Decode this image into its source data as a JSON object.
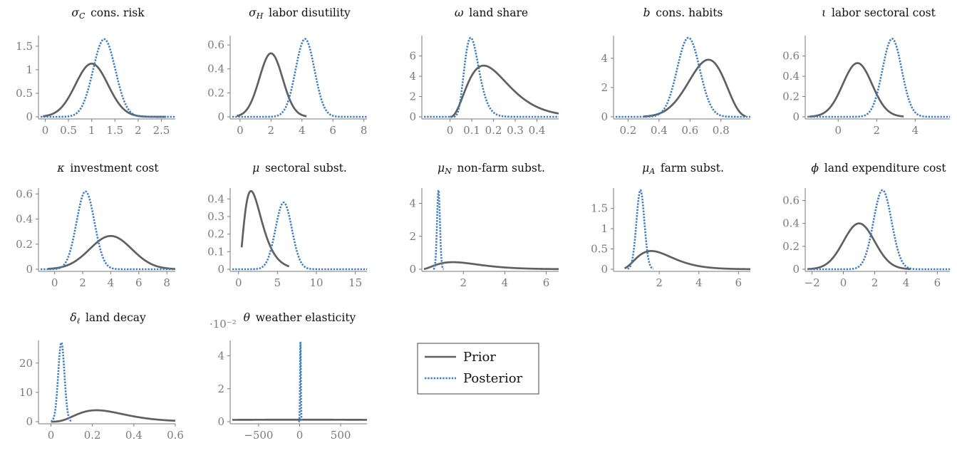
{
  "colors": {
    "prior": "#606060",
    "posterior": "#3f7fbf",
    "axis": "#7a7a7a"
  },
  "legend": {
    "prior_label": "Prior",
    "posterior_label": "Posterior",
    "placement": "right of bottom row"
  },
  "chart_data": [
    {
      "type": "line",
      "title": "σ_C cons. risk",
      "xlim": [
        -0.1,
        2.8
      ],
      "ylim": [
        0,
        1.68
      ],
      "xticks": [
        0,
        0.5,
        1,
        1.5,
        2,
        2.5
      ],
      "xtick_labels": [
        "0",
        "0.5",
        "1",
        "1.5",
        "2",
        "2.5"
      ],
      "yticks": [
        0,
        0.5,
        1,
        1.5
      ],
      "ytick_labels": [
        "0",
        "0.5",
        "1",
        "1.5"
      ],
      "series": [
        {
          "name": "Prior",
          "dist": "normal",
          "mean": 1.0,
          "sd": 0.35,
          "peak": 1.13,
          "support": [
            -0.05,
            2.6
          ]
        },
        {
          "name": "Posterior",
          "dist": "normal",
          "mean": 1.27,
          "sd": 0.24,
          "peak": 1.65,
          "support": [
            -0.1,
            2.8
          ]
        }
      ]
    },
    {
      "type": "line",
      "title": "σ_H labor disutility",
      "xlim": [
        -0.5,
        8.2
      ],
      "ylim": [
        0,
        0.66
      ],
      "xticks": [
        0,
        2,
        4,
        6,
        8
      ],
      "xtick_labels": [
        "0",
        "2",
        "4",
        "6",
        "8"
      ],
      "yticks": [
        0,
        0.2,
        0.4,
        0.6
      ],
      "ytick_labels": [
        "0",
        "0.2",
        "0.4",
        "0.6"
      ],
      "series": [
        {
          "name": "Prior",
          "dist": "normal",
          "mean": 2.0,
          "sd": 0.75,
          "peak": 0.53,
          "support": [
            -0.2,
            4.3
          ]
        },
        {
          "name": "Posterior",
          "dist": "normal",
          "mean": 4.2,
          "sd": 0.61,
          "peak": 0.65,
          "support": [
            -0.5,
            8.2
          ]
        }
      ]
    },
    {
      "type": "line",
      "title": "ω land share",
      "xlim": [
        -0.12,
        0.5
      ],
      "ylim": [
        0,
        7.8
      ],
      "xticks": [
        0,
        0.1,
        0.2,
        0.3,
        0.4
      ],
      "xtick_labels": [
        "0",
        "0.1",
        "0.2",
        "0.3",
        "0.4"
      ],
      "yticks": [
        0,
        2,
        4,
        6
      ],
      "ytick_labels": [
        "0",
        "2",
        "4",
        "6"
      ],
      "series": [
        {
          "name": "Prior",
          "dist": "gamma",
          "mode": 0.155,
          "shape": 3.6,
          "peak": 5.05,
          "support": [
            0.0,
            0.5
          ]
        },
        {
          "name": "Posterior",
          "dist": "gamma",
          "mode": 0.095,
          "shape": 9.0,
          "peak": 7.8,
          "support": [
            -0.12,
            0.5
          ]
        }
      ]
    },
    {
      "type": "line",
      "title": "b cons. habits",
      "xlim": [
        0.12,
        0.99
      ],
      "ylim": [
        0,
        5.4
      ],
      "xticks": [
        0.2,
        0.4,
        0.6,
        0.8
      ],
      "xtick_labels": [
        "0.2",
        "0.4",
        "0.6",
        "0.8"
      ],
      "yticks": [
        0,
        2,
        4
      ],
      "ytick_labels": [
        "0",
        "2",
        "4"
      ],
      "series": [
        {
          "name": "Prior",
          "dist": "beta",
          "mode": 0.72,
          "a": 11,
          "b": 4.9,
          "peak": 3.9,
          "support": [
            0.3,
            0.96
          ]
        },
        {
          "name": "Posterior",
          "dist": "normal",
          "mean": 0.59,
          "sd": 0.073,
          "peak": 5.4,
          "support": [
            0.12,
            0.99
          ]
        }
      ]
    },
    {
      "type": "line",
      "title": "ι labor sectoral cost",
      "xlim": [
        -1.6,
        5.8
      ],
      "ylim": [
        0,
        0.78
      ],
      "xticks": [
        0,
        2,
        4
      ],
      "xtick_labels": [
        "0",
        "2",
        "4"
      ],
      "yticks": [
        0,
        0.2,
        0.4,
        0.6
      ],
      "ytick_labels": [
        "0",
        "0.2",
        "0.4",
        "0.6"
      ],
      "series": [
        {
          "name": "Prior",
          "dist": "normal",
          "mean": 1.0,
          "sd": 0.76,
          "peak": 0.53,
          "support": [
            -1.5,
            3.4
          ]
        },
        {
          "name": "Posterior",
          "dist": "normal",
          "mean": 2.8,
          "sd": 0.5,
          "peak": 0.77,
          "support": [
            -1.6,
            5.8
          ]
        }
      ]
    },
    {
      "type": "line",
      "title": "κ investment cost",
      "xlim": [
        -1.0,
        8.6
      ],
      "ylim": [
        0,
        0.63
      ],
      "xticks": [
        0,
        2,
        4,
        6,
        8
      ],
      "xtick_labels": [
        "0",
        "2",
        "4",
        "6",
        "8"
      ],
      "yticks": [
        0,
        0.2,
        0.4,
        0.6
      ],
      "ytick_labels": [
        "0",
        "0.2",
        "0.4",
        "0.6"
      ],
      "series": [
        {
          "name": "Prior",
          "dist": "normal",
          "mean": 4.0,
          "sd": 1.5,
          "peak": 0.265,
          "support": [
            -0.5,
            8.6
          ]
        },
        {
          "name": "Posterior",
          "dist": "normal",
          "mean": 2.2,
          "sd": 0.64,
          "peak": 0.62,
          "support": [
            -1.0,
            8.6
          ]
        }
      ]
    },
    {
      "type": "line",
      "title": "μ sectoral subst.",
      "xlim": [
        -0.8,
        16.5
      ],
      "ylim": [
        0,
        0.45
      ],
      "xticks": [
        0,
        5,
        10,
        15
      ],
      "xtick_labels": [
        "0",
        "5",
        "10",
        "15"
      ],
      "yticks": [
        0,
        0.1,
        0.2,
        0.3,
        0.4
      ],
      "ytick_labels": [
        "0",
        "0.1",
        "0.2",
        "0.3",
        "0.4"
      ],
      "series": [
        {
          "name": "Prior",
          "dist": "gamma",
          "mode": 1.6,
          "shape": 3.0,
          "peak": 0.445,
          "support": [
            0.4,
            6.5
          ]
        },
        {
          "name": "Posterior",
          "dist": "normal",
          "mean": 5.8,
          "sd": 1.05,
          "peak": 0.38,
          "support": [
            -0.8,
            16.5
          ]
        }
      ]
    },
    {
      "type": "line",
      "title": "μ_N non-farm subst.",
      "xlim": [
        0.1,
        6.6
      ],
      "ylim": [
        0,
        4.8
      ],
      "xticks": [
        2,
        4,
        6
      ],
      "xtick_labels": [
        "2",
        "4",
        "6"
      ],
      "yticks": [
        0,
        2,
        4
      ],
      "ytick_labels": [
        "0",
        "2",
        "4"
      ],
      "series": [
        {
          "name": "Prior",
          "dist": "gamma",
          "mode": 1.5,
          "shape": 3.0,
          "peak": 0.43,
          "support": [
            0.1,
            6.6
          ]
        },
        {
          "name": "Posterior",
          "dist": "normal",
          "mean": 0.8,
          "sd": 0.07,
          "peak": 4.8,
          "support": [
            0.55,
            1.05
          ]
        }
      ]
    },
    {
      "type": "line",
      "title": "μ_A farm subst.",
      "xlim": [
        -0.2,
        6.6
      ],
      "ylim": [
        0,
        1.95
      ],
      "xticks": [
        2,
        4,
        6
      ],
      "xtick_labels": [
        "2",
        "4",
        "6"
      ],
      "yticks": [
        0,
        0.5,
        1,
        1.5
      ],
      "ytick_labels": [
        "0",
        "0.5",
        "1",
        "1.5"
      ],
      "series": [
        {
          "name": "Prior",
          "dist": "gamma",
          "mode": 1.6,
          "shape": 4.0,
          "peak": 0.45,
          "support": [
            0.25,
            6.6
          ]
        },
        {
          "name": "Posterior",
          "dist": "normal",
          "mean": 1.05,
          "sd": 0.2,
          "peak": 1.95,
          "support": [
            0.4,
            1.7
          ]
        }
      ]
    },
    {
      "type": "line",
      "title": "ϕ land expenditure cost",
      "xlim": [
        -2.3,
        6.8
      ],
      "ylim": [
        0,
        0.69
      ],
      "xticks": [
        -2,
        0,
        2,
        4,
        6
      ],
      "xtick_labels": [
        "−2",
        "0",
        "2",
        "4",
        "6"
      ],
      "yticks": [
        0,
        0.2,
        0.4,
        0.6
      ],
      "ytick_labels": [
        "0",
        "0.2",
        "0.4",
        "0.6"
      ],
      "series": [
        {
          "name": "Prior",
          "dist": "normal",
          "mean": 1.0,
          "sd": 1.0,
          "peak": 0.4,
          "support": [
            -2.3,
            4.3
          ]
        },
        {
          "name": "Posterior",
          "dist": "normal",
          "mean": 2.5,
          "sd": 0.58,
          "peak": 0.69,
          "support": [
            -2.3,
            6.8
          ]
        }
      ]
    },
    {
      "type": "line",
      "title": "δ_ℓ land decay",
      "xlim": [
        -0.05,
        0.6
      ],
      "ylim": [
        0,
        27
      ],
      "xticks": [
        0,
        0.2,
        0.4,
        0.6
      ],
      "xtick_labels": [
        "0",
        "0.2",
        "0.4",
        "0.6"
      ],
      "yticks": [
        0,
        10,
        20
      ],
      "ytick_labels": [
        "0",
        "10",
        "20"
      ],
      "series": [
        {
          "name": "Prior",
          "dist": "gamma",
          "mode": 0.22,
          "shape": 4.5,
          "peak": 3.9,
          "support": [
            0.0,
            0.6
          ]
        },
        {
          "name": "Posterior",
          "dist": "normal",
          "mean": 0.05,
          "sd": 0.015,
          "peak": 27,
          "support": [
            0.0,
            0.1
          ]
        }
      ]
    },
    {
      "type": "line",
      "title": "θ weather elasticity",
      "y_multiplier_label": "·10⁻²",
      "xlim": [
        -820,
        820
      ],
      "ylim": [
        0,
        0.048
      ],
      "xticks": [
        -500,
        0,
        500
      ],
      "xtick_labels": [
        "−500",
        "0",
        "500"
      ],
      "yticks": [
        0,
        0.02,
        0.04
      ],
      "ytick_labels": [
        "0",
        "2",
        "4"
      ],
      "series": [
        {
          "name": "Prior",
          "dist": "normal",
          "mean": 0,
          "sd": 2000,
          "peak": 0.0012,
          "support": [
            -820,
            820
          ]
        },
        {
          "name": "Posterior",
          "dist": "normal",
          "mean": 10,
          "sd": 5,
          "peak": 0.048,
          "support": [
            -10,
            30
          ]
        }
      ]
    }
  ]
}
